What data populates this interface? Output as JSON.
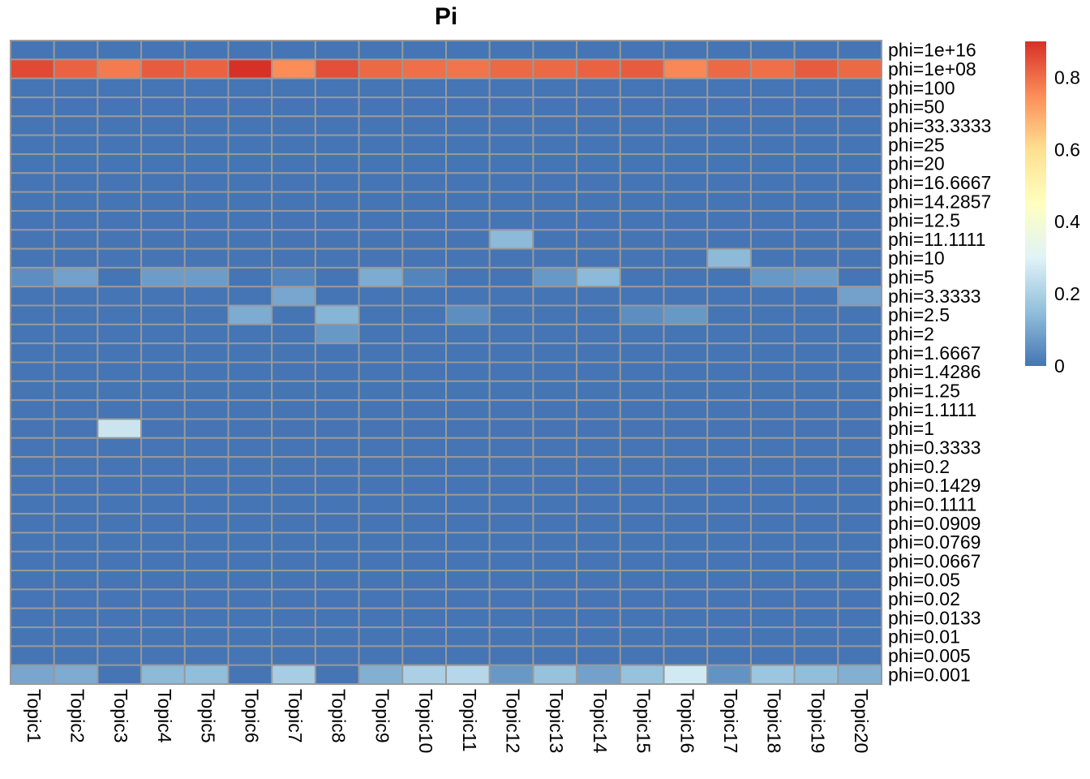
{
  "chart_data": {
    "type": "heatmap",
    "title": "Pi",
    "columns": [
      "Topic1",
      "Topic2",
      "Topic3",
      "Topic4",
      "Topic5",
      "Topic6",
      "Topic7",
      "Topic8",
      "Topic9",
      "Topic10",
      "Topic11",
      "Topic12",
      "Topic13",
      "Topic14",
      "Topic15",
      "Topic16",
      "Topic17",
      "Topic18",
      "Topic19",
      "Topic20"
    ],
    "rows": [
      "phi=1e+16",
      "phi=1e+08",
      "phi=100",
      "phi=50",
      "phi=33.3333",
      "phi=25",
      "phi=20",
      "phi=16.6667",
      "phi=14.2857",
      "phi=12.5",
      "phi=11.1111",
      "phi=10",
      "phi=5",
      "phi=3.3333",
      "phi=2.5",
      "phi=2",
      "phi=1.6667",
      "phi=1.4286",
      "phi=1.25",
      "phi=1.1111",
      "phi=1",
      "phi=0.3333",
      "phi=0.2",
      "phi=0.1429",
      "phi=0.1111",
      "phi=0.0909",
      "phi=0.0769",
      "phi=0.0667",
      "phi=0.05",
      "phi=0.02",
      "phi=0.0133",
      "phi=0.01",
      "phi=0.005",
      "phi=0.001"
    ],
    "nonzero_cells": [
      {
        "row": "phi=1e+08",
        "values": [
          0.86,
          0.82,
          0.78,
          0.83,
          0.82,
          0.9,
          0.75,
          0.85,
          0.81,
          0.8,
          0.79,
          0.81,
          0.81,
          0.82,
          0.83,
          0.76,
          0.81,
          0.8,
          0.83,
          0.81
        ]
      },
      {
        "row": "phi=11.1111",
        "cells": [
          {
            "col": "Topic12",
            "value": 0.14
          }
        ]
      },
      {
        "row": "phi=10",
        "cells": [
          {
            "col": "Topic17",
            "value": 0.14
          }
        ]
      },
      {
        "row": "phi=5",
        "cells": [
          {
            "col": "Topic1",
            "value": 0.05
          },
          {
            "col": "Topic2",
            "value": 0.09
          },
          {
            "col": "Topic4",
            "value": 0.08
          },
          {
            "col": "Topic5",
            "value": 0.08
          },
          {
            "col": "Topic7",
            "value": 0.03
          },
          {
            "col": "Topic9",
            "value": 0.11
          },
          {
            "col": "Topic10",
            "value": 0.03
          },
          {
            "col": "Topic13",
            "value": 0.07
          },
          {
            "col": "Topic14",
            "value": 0.14
          },
          {
            "col": "Topic18",
            "value": 0.07
          },
          {
            "col": "Topic19",
            "value": 0.08
          }
        ]
      },
      {
        "row": "phi=3.3333",
        "cells": [
          {
            "col": "Topic7",
            "value": 0.1
          },
          {
            "col": "Topic20",
            "value": 0.09
          }
        ]
      },
      {
        "row": "phi=2.5",
        "cells": [
          {
            "col": "Topic6",
            "value": 0.11
          },
          {
            "col": "Topic8",
            "value": 0.13
          },
          {
            "col": "Topic11",
            "value": 0.05
          },
          {
            "col": "Topic15",
            "value": 0.05
          },
          {
            "col": "Topic16",
            "value": 0.07
          }
        ]
      },
      {
        "row": "phi=2",
        "cells": [
          {
            "col": "Topic8",
            "value": 0.07
          }
        ]
      },
      {
        "row": "phi=1",
        "cells": [
          {
            "col": "Topic3",
            "value": 0.26
          }
        ]
      },
      {
        "row": "phi=0.001",
        "values": [
          0.1,
          0.11,
          0.0,
          0.14,
          0.15,
          0.0,
          0.19,
          0.0,
          0.12,
          0.2,
          0.22,
          0.07,
          0.16,
          0.09,
          0.16,
          0.27,
          0.06,
          0.17,
          0.15,
          0.12
        ]
      }
    ],
    "colorbar": {
      "range": [
        0,
        0.9
      ],
      "ticks": [
        0,
        0.2,
        0.4,
        0.6,
        0.8
      ],
      "tick_labels": [
        "0",
        "0.2",
        "0.4",
        "0.6",
        "0.8"
      ],
      "colors": [
        "#4575B4",
        "#91BFDB",
        "#E0F3F8",
        "#FFFFBF",
        "#FEE090",
        "#FC8D59",
        "#D73027"
      ]
    },
    "grid_color": "#999999",
    "legend": "right"
  }
}
